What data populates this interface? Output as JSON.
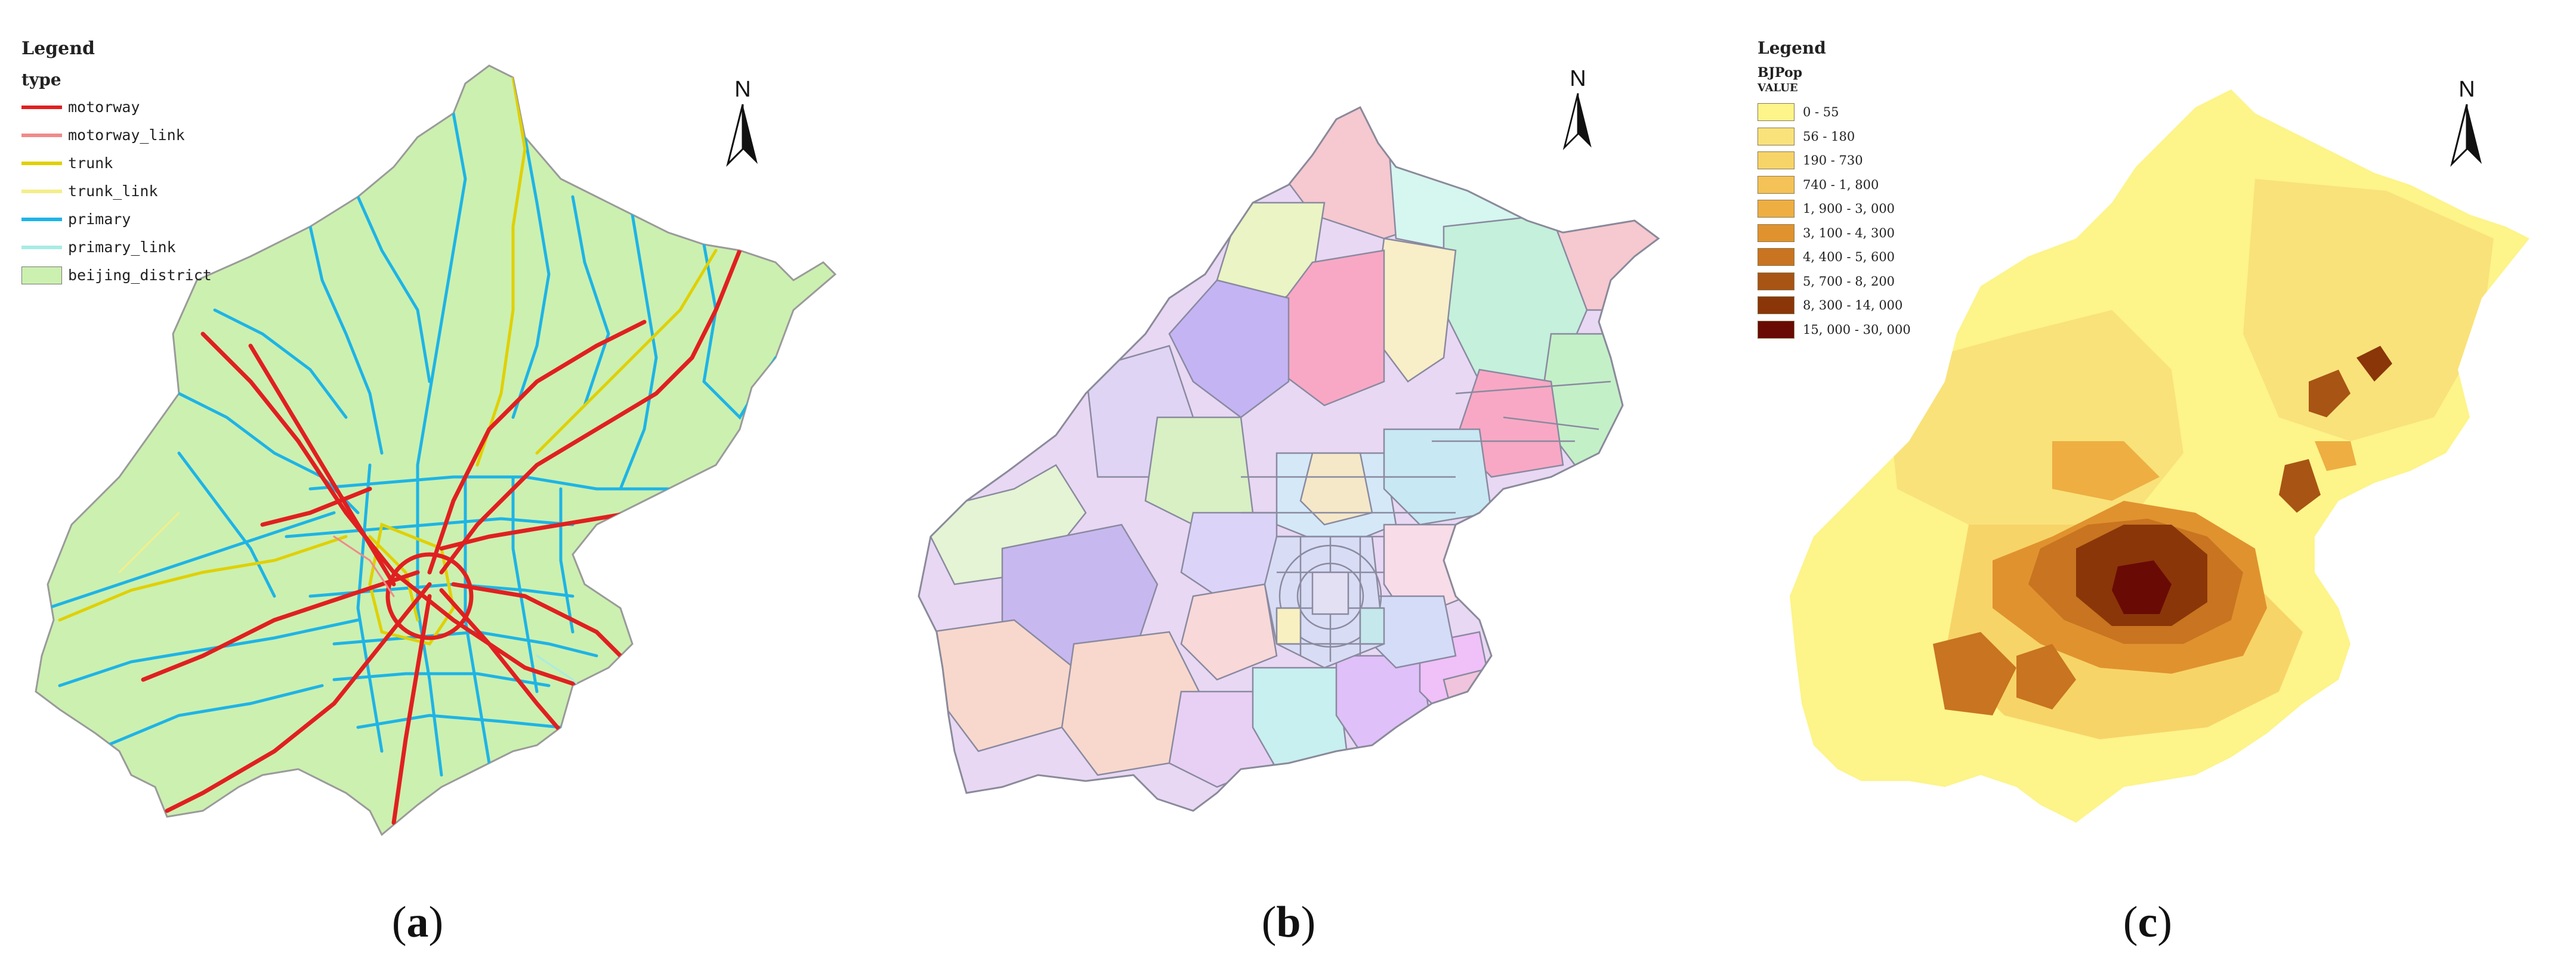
{
  "panels": {
    "a": {
      "caption_open": "(",
      "caption_letter": "a",
      "caption_close": ")",
      "north_label": "N",
      "legend": {
        "title": "Legend",
        "field": "type",
        "items": [
          {
            "label": "motorway",
            "color": "#e02020",
            "kind": "line"
          },
          {
            "label": "motorway_link",
            "color": "#f08a8a",
            "kind": "line"
          },
          {
            "label": "trunk",
            "color": "#e0d000",
            "kind": "line"
          },
          {
            "label": "trunk_link",
            "color": "#f4ee8a",
            "kind": "line"
          },
          {
            "label": "primary",
            "color": "#1eb4e6",
            "kind": "line"
          },
          {
            "label": "primary_link",
            "color": "#a8ece4",
            "kind": "line"
          },
          {
            "label": "beijing_district",
            "color": "#ccf0b0",
            "kind": "box"
          }
        ]
      }
    },
    "b": {
      "caption_open": "(",
      "caption_letter": "b",
      "caption_close": ")",
      "north_label": "N"
    },
    "c": {
      "caption_open": "(",
      "caption_letter": "c",
      "caption_close": ")",
      "north_label": "N",
      "legend": {
        "title": "Legend",
        "layer": "BJPop",
        "field": "VALUE",
        "classes": [
          {
            "label": "0 - 55",
            "color": "#fdf48a"
          },
          {
            "label": "56 - 180",
            "color": "#f9e27a"
          },
          {
            "label": "190 - 730",
            "color": "#f7d468"
          },
          {
            "label": "740 - 1, 800",
            "color": "#f4c256"
          },
          {
            "label": "1, 900 - 3, 000",
            "color": "#eeae42"
          },
          {
            "label": "3, 100 - 4, 300",
            "color": "#e0922e"
          },
          {
            "label": "4, 400 - 5, 600",
            "color": "#c87420"
          },
          {
            "label": "5, 700 - 8, 200",
            "color": "#a85414"
          },
          {
            "label": "8, 300 - 14, 000",
            "color": "#8a3608"
          },
          {
            "label": "15, 000 - 30, 000",
            "color": "#6a0a04"
          }
        ]
      }
    }
  }
}
